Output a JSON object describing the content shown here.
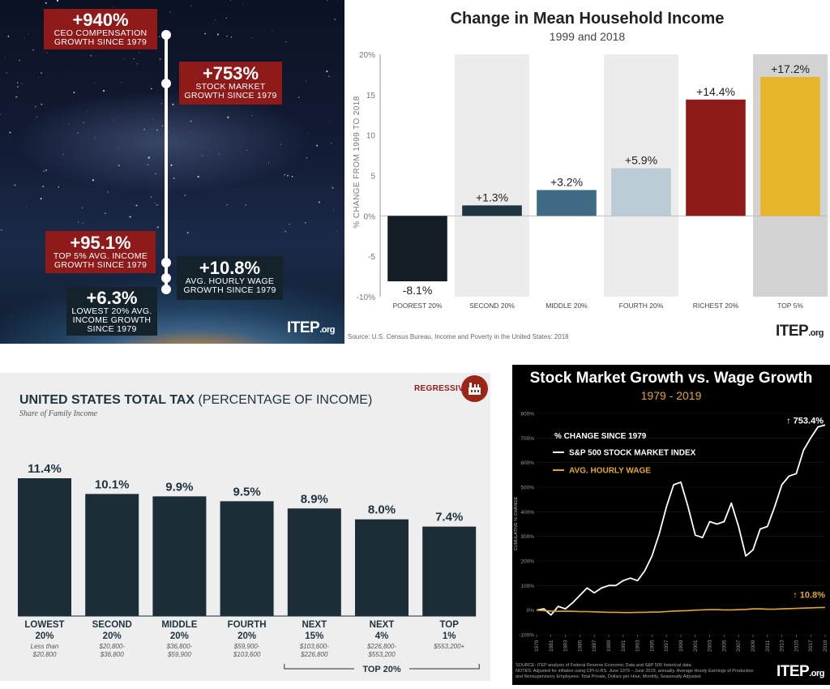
{
  "panel1": {
    "stats": {
      "ceo": {
        "value": "+940%",
        "label1": "CEO COMPENSATION",
        "label2": "GROWTH SINCE 1979"
      },
      "stock": {
        "value": "+753%",
        "label1": "STOCK MARKET",
        "label2": "GROWTH SINCE 1979"
      },
      "top5": {
        "value": "+95.1%",
        "label1": "TOP 5% AVG. INCOME",
        "label2": "GROWTH SINCE 1979"
      },
      "wage": {
        "value": "+10.8%",
        "label1": "AVG. HOURLY WAGE",
        "label2": "GROWTH SINCE 1979"
      },
      "low20": {
        "value": "+6.3%",
        "label1": "LOWEST 20% AVG.",
        "label2": "INCOME GROWTH",
        "label3": "SINCE 1979"
      }
    },
    "logo": {
      "main": "ITEP",
      "suffix": ".org"
    },
    "colors": {
      "red_box": "#8e1a1a",
      "dark_box": "#14222c"
    }
  },
  "panel2": {
    "logo": {
      "main": "ITEP",
      "suffix": ".org"
    },
    "source": "Source: U.S. Census Bureau, Income and Poverty in the United States: 2018"
  },
  "panel3": {
    "badge": "REGRESSIVE",
    "logo_icon": "factory-icon",
    "title_bold": "UNITED STATES TOTAL TAX",
    "title_light": "(PERCENTAGE OF INCOME)",
    "subtitle": "Share of Family Income",
    "group_label": "TOP 20%"
  },
  "panel4": {
    "logo": {
      "main": "ITEP",
      "suffix": ".org"
    },
    "footnote1": "SOURCE: ITEP analysis of Federal Reserve Economic Data and S&P 500 historical data.",
    "footnote2": "NOTES: Adjusted for inflation using CPI-U-RS. June 1979 – June 2019, annually. Average Hourly Earnings of Production",
    "footnote3": "and Nonsupervisory Employees: Total Private, Dollars per Hour, Monthly, Seasonally Adjusted."
  },
  "chart_data": [
    {
      "type": "bar",
      "title": "Change in Mean Household Income",
      "subtitle": "1999 and 2018",
      "ylabel": "% CHANGE FROM 1999 TO 2018",
      "categories": [
        "POOREST 20%",
        "SECOND 20%",
        "MIDDLE 20%",
        "FOURTH 20%",
        "RICHEST 20%",
        "TOP 5%"
      ],
      "values": [
        -8.1,
        1.3,
        3.2,
        5.9,
        14.4,
        17.2
      ],
      "value_labels": [
        "-8.1%",
        "+1.3%",
        "+3.2%",
        "+5.9%",
        "+14.4%",
        "+17.2%"
      ],
      "ylim": [
        -10,
        20
      ],
      "yticks": [
        "20%",
        "15",
        "10",
        "5",
        "0%",
        "-5",
        "-10%"
      ],
      "ytick_values": [
        20,
        15,
        10,
        5,
        0,
        -5,
        -10
      ],
      "colors": [
        "#121d24",
        "#1e3440",
        "#3f6a84",
        "#b9ccd6",
        "#8e1a1a",
        "#e7b52a"
      ],
      "band_colors": [
        "#ffffff",
        "#ececec",
        "#ffffff",
        "#ececec",
        "#ffffff",
        "#d3d3d3"
      ]
    },
    {
      "type": "bar",
      "title": "UNITED STATES TOTAL TAX (PERCENTAGE OF INCOME)",
      "subtitle": "Share of Family Income",
      "categories": [
        {
          "line1": "LOWEST",
          "line2": "20%",
          "range1": "Less than",
          "range2": "$20,800"
        },
        {
          "line1": "SECOND",
          "line2": "20%",
          "range1": "$20,800-",
          "range2": "$36,800"
        },
        {
          "line1": "MIDDLE",
          "line2": "20%",
          "range1": "$36,800-",
          "range2": "$59,900"
        },
        {
          "line1": "FOURTH",
          "line2": "20%",
          "range1": "$59,900-",
          "range2": "$103,600"
        },
        {
          "line1": "NEXT",
          "line2": "15%",
          "range1": "$103,600-",
          "range2": "$226,800"
        },
        {
          "line1": "NEXT",
          "line2": "4%",
          "range1": "$226,800-",
          "range2": "$553,200"
        },
        {
          "line1": "TOP",
          "line2": "1%",
          "range1": "$553,200+",
          "range2": ""
        }
      ],
      "values": [
        11.4,
        10.1,
        9.9,
        9.5,
        8.9,
        8.0,
        7.4
      ],
      "value_labels": [
        "11.4%",
        "10.1%",
        "9.9%",
        "9.5%",
        "8.9%",
        "8.0%",
        "7.4%"
      ],
      "ylim": [
        0,
        12
      ],
      "color": "#1c2d38"
    },
    {
      "type": "line",
      "title": "Stock Market Growth vs. Wage Growth",
      "subtitle": "1979 - 2019",
      "inner_title": "% CHANGE SINCE 1979",
      "ylabel": "CUMULATIVE % CHANGE",
      "ylim": [
        -100,
        800
      ],
      "yticks": [
        "800%",
        "700%",
        "600%",
        "500%",
        "400%",
        "300%",
        "200%",
        "100%",
        "0%",
        "-100%"
      ],
      "ytick_values": [
        800,
        700,
        600,
        500,
        400,
        300,
        200,
        100,
        0,
        -100
      ],
      "xticks": [
        "1979",
        "1981",
        "1983",
        "1985",
        "1987",
        "1989",
        "1991",
        "1993",
        "1995",
        "1997",
        "1999",
        "2001",
        "2003",
        "2005",
        "2007",
        "2009",
        "2011",
        "2013",
        "2015",
        "2017",
        "2019"
      ],
      "x": [
        1979,
        1980,
        1981,
        1982,
        1983,
        1984,
        1985,
        1986,
        1987,
        1988,
        1989,
        1990,
        1991,
        1992,
        1993,
        1994,
        1995,
        1996,
        1997,
        1998,
        1999,
        2000,
        2001,
        2002,
        2003,
        2004,
        2005,
        2006,
        2007,
        2008,
        2009,
        2010,
        2011,
        2012,
        2013,
        2014,
        2015,
        2016,
        2017,
        2018,
        2019
      ],
      "series": [
        {
          "name": "S&P 500 STOCK MARKET INDEX",
          "color": "#ffffff",
          "end_label": "753.4%",
          "values": [
            0,
            5,
            -20,
            15,
            5,
            30,
            60,
            90,
            70,
            90,
            100,
            100,
            120,
            130,
            120,
            160,
            220,
            310,
            420,
            510,
            520,
            420,
            305,
            295,
            360,
            350,
            360,
            435,
            340,
            220,
            245,
            330,
            340,
            420,
            510,
            545,
            555,
            650,
            700,
            745,
            753
          ]
        },
        {
          "name": "AVG. HOURLY WAGE",
          "color": "#e0a82e",
          "end_label": "10.8%",
          "values": [
            0,
            -2,
            -4,
            -5,
            -4,
            -5,
            -6,
            -6,
            -7,
            -8,
            -9,
            -9,
            -10,
            -10,
            -9,
            -9,
            -8,
            -8,
            -6,
            -4,
            -3,
            -2,
            0,
            1,
            2,
            2,
            1,
            1,
            2,
            3,
            5,
            5,
            4,
            4,
            5,
            6,
            7,
            8,
            9,
            10,
            10.8
          ]
        }
      ]
    }
  ]
}
